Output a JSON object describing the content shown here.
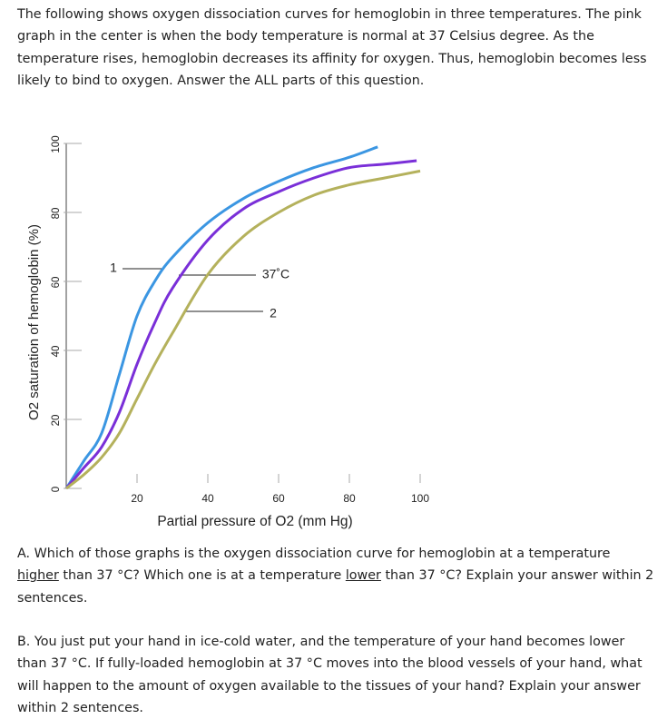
{
  "intro": "The following shows oxygen dissociation curves for hemoglobin in three temperatures. The pink graph in the center is when the body temperature is normal at 37 Celsius degree. As the temperature rises, hemoglobin decreases its affinity for oxygen. Thus, hemoglobin becomes less likely to bind to oxygen. Answer the ALL parts of this question.",
  "chart_data": {
    "type": "line",
    "x_label": "Partial pressure of O2 (mm Hg)",
    "y_label": "O2 saturation of hemoglobin (%)",
    "xlim": [
      0,
      100
    ],
    "ylim": [
      0,
      100
    ],
    "xticks": [
      20,
      40,
      60,
      80,
      100
    ],
    "yticks": [
      0,
      20,
      40,
      60,
      80,
      100
    ],
    "annotations": [
      "1",
      "37˚C",
      "2"
    ],
    "series": [
      {
        "color": "#3b96e2",
        "x": [
          0,
          5,
          10,
          15,
          20,
          25,
          30,
          40,
          50,
          60,
          70,
          80,
          88
        ],
        "values": [
          0,
          8,
          16,
          33,
          50,
          60,
          67,
          77,
          84,
          89,
          93,
          96,
          99
        ]
      },
      {
        "color": "#7a2fd8",
        "x": [
          0,
          5,
          10,
          15,
          20,
          25,
          30,
          40,
          50,
          60,
          70,
          80,
          90,
          99
        ],
        "values": [
          0,
          6,
          12,
          22,
          36,
          48,
          58,
          72,
          81,
          86,
          90,
          93,
          94,
          95
        ]
      },
      {
        "color": "#b4b15c",
        "x": [
          0,
          5,
          10,
          15,
          20,
          25,
          30,
          40,
          50,
          60,
          70,
          80,
          90,
          100
        ],
        "values": [
          0,
          4,
          9,
          16,
          26,
          36,
          45,
          62,
          73,
          80,
          85,
          88,
          90,
          92
        ]
      }
    ]
  },
  "part_a": [
    "A. Which of those graphs is the oxygen dissociation curve for hemoglobin at a temperature ",
    "higher",
    " than 37 °C? Which one is at a temperature ",
    "lower",
    " than 37 °C? Explain your answer within 2 sentences."
  ],
  "part_b": "B. You just put your hand in ice-cold water, and the temperature of your hand becomes lower than 37 °C. If fully-loaded hemoglobin at 37 °C moves into the blood vessels of your hand, what will happen to the amount of oxygen available to the tissues of your hand? Explain your answer within 2 sentences."
}
